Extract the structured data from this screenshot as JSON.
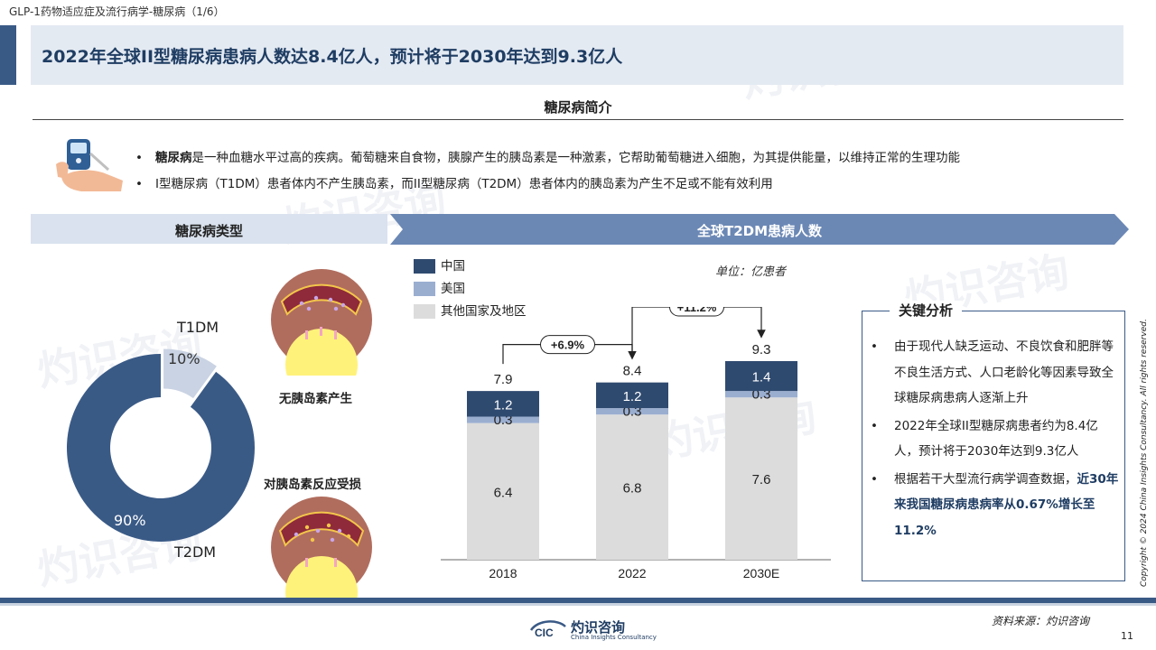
{
  "doc_title": "GLP-1药物适应症及流行病学-糖尿病（1/6）",
  "headline": "2022年全球II型糖尿病患病人数达8.4亿人，预计将于2030年达到9.3亿人",
  "intro": {
    "title": "糖尿病简介",
    "bullet1_term": "糖尿病",
    "bullet1_rest": "是一种血糖水平过高的疾病。葡萄糖来自食物，胰腺产生的胰岛素是一种激素，它帮助葡萄糖进入细胞，为其提供能量，以维持正常的生理功能",
    "bullet2": "I型糖尿病（T1DM）患者体内不产生胰岛素，而II型糖尿病（T2DM）患者体内的胰岛素为产生不足或不能有效利用",
    "bullet_symbol": "•"
  },
  "types": {
    "title": "糖尿病类型",
    "t1dm_label": "T1DM",
    "t2dm_label": "T2DM",
    "t1dm_share": "10%",
    "t2dm_share": "90%",
    "t1dm_fraction": 0.1,
    "t2dm_fraction": 0.9,
    "caption_no_insulin": "无胰岛素产生",
    "caption_damaged": "对胰岛素反应受损"
  },
  "colors": {
    "navy": "#3a5a86",
    "light_blue": "#c9d3e3",
    "china": "#2f4a6f",
    "usa": "#9aaed0",
    "other": "#dcdcdc",
    "cell": "#8e2a3a",
    "skin": "#b06d5e",
    "yellow": "#fff27a"
  },
  "watermark": {
    "cn": "灼识咨询",
    "en": "China Insights Consultancy",
    "mark": "CIC"
  },
  "chart_data": {
    "type": "bar",
    "stacked": true,
    "title": "全球T2DM患病人数",
    "unit": "单位：亿患者",
    "categories": [
      "2018",
      "2022",
      "2030E"
    ],
    "series": [
      {
        "name": "中国",
        "values": [
          1.2,
          1.2,
          1.4
        ]
      },
      {
        "name": "美国",
        "values": [
          0.3,
          0.3,
          0.3
        ]
      },
      {
        "name": "其他国家及地区",
        "values": [
          6.4,
          6.8,
          7.6
        ]
      }
    ],
    "totals": [
      7.9,
      8.4,
      9.3
    ],
    "growth": [
      {
        "from": "2018",
        "to": "2022",
        "label": "+6.9%"
      },
      {
        "from": "2022",
        "to": "2030E",
        "label": "+11.2%"
      }
    ],
    "legend_position": "top-left",
    "ylim": [
      0,
      9.3
    ],
    "grid": false
  },
  "key_analysis": {
    "title": "关键分析",
    "items": [
      "由于现代人缺乏运动、不良饮食和肥胖等不良生活方式、人口老龄化等因素导致全球糖尿病患病人逐渐上升",
      "2022年全球II型糖尿病患者约为8.4亿人，预计将于2030年达到9.3亿人"
    ],
    "item3_text": "根据若干大型流行病学调查数据，",
    "item3_highlight": "近30年来我国糖尿病患病率从0.67%增长至11.2%"
  },
  "footer": {
    "source": "资料来源：灼识咨询",
    "page": "11",
    "copyright": "Copyright © 2024 China Insights Consultancy. All rights reserved.",
    "logo_cn": "灼识咨询",
    "logo_en": "China Insights Consultancy",
    "logo_mark": "CIC"
  }
}
